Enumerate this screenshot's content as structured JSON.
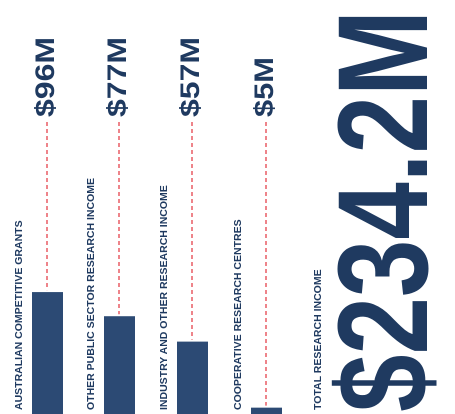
{
  "chart_data": {
    "type": "bar",
    "categories": [
      "AUSTRALIAN COMPETITIVE GRANTS",
      "OTHER PUBLIC SECTOR RESEARCH INCOME",
      "INDUSTRY AND OTHER RESEARCH INCOME",
      "COOPERATIVE RESEARCH CENTRES"
    ],
    "values": [
      96,
      77,
      57,
      5
    ],
    "value_labels": [
      "$96M",
      "$77M",
      "$57M",
      "$5M"
    ],
    "color": "#2c4a74",
    "total": {
      "title": "TOTAL RESEARCH INCOME",
      "value": 234.2,
      "value_label": "$234.2M"
    }
  }
}
